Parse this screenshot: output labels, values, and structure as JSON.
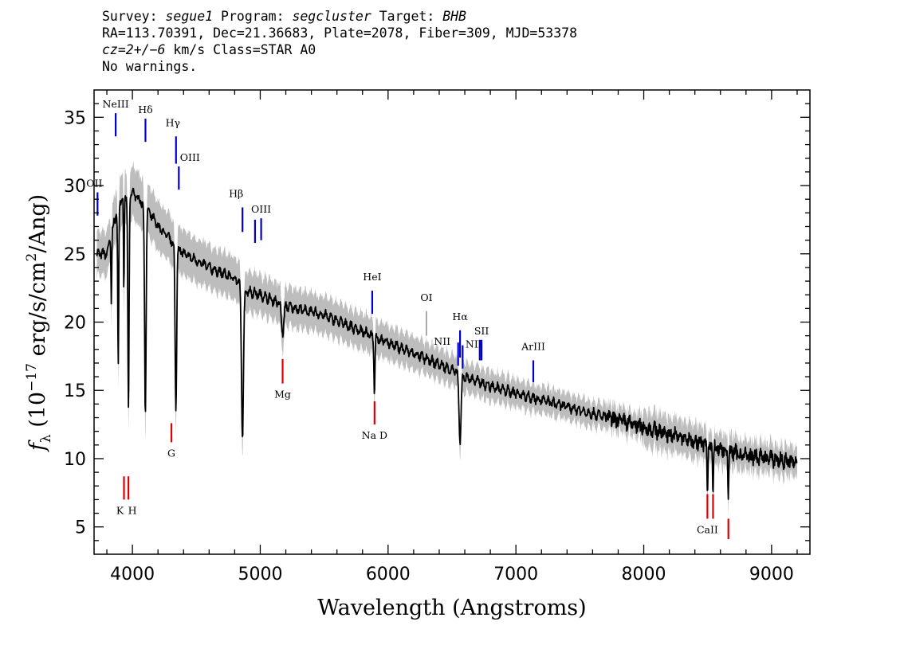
{
  "header": {
    "line1": {
      "survey_label": "Survey: ",
      "survey": "segue1",
      "program_label": " Program: ",
      "program": "segcluster",
      "target_label": " Target: ",
      "target": "BHB"
    },
    "line2": "RA=113.70391, Dec=21.36683, Plate=2078, Fiber=309, MJD=53378",
    "line3": {
      "cz_label": "cz=2+/−6",
      "rest": " km/s Class=STAR A0"
    },
    "line4": "No warnings."
  },
  "chart_data": {
    "type": "line",
    "xlabel": "Wavelength (Angstroms)",
    "ylabel": "f_λ (10^-17 erg/s/cm^2/Ang)",
    "xlim": [
      3700,
      9300
    ],
    "ylim": [
      3,
      37
    ],
    "x_ticks": [
      4000,
      5000,
      6000,
      7000,
      8000,
      9000
    ],
    "y_ticks": [
      5,
      10,
      15,
      20,
      25,
      30,
      35
    ],
    "colors": {
      "spectrum": "#000000",
      "error": "#bdbdbd",
      "emission": "#0000cc",
      "absorption": "#dd0000",
      "sky": "#555555"
    },
    "series": [
      {
        "name": "spectrum",
        "continuum_knots": [
          [
            3800,
            25
          ],
          [
            3850,
            27
          ],
          [
            3900,
            29
          ],
          [
            4000,
            29.5
          ],
          [
            4100,
            28.5
          ],
          [
            4200,
            27
          ],
          [
            4400,
            25
          ],
          [
            4600,
            24
          ],
          [
            4800,
            23.2
          ],
          [
            4850,
            22.8
          ],
          [
            4900,
            22.3
          ],
          [
            5000,
            22
          ],
          [
            5200,
            21.2
          ],
          [
            5500,
            20.5
          ],
          [
            6000,
            18.5
          ],
          [
            6300,
            17.3
          ],
          [
            6500,
            16.5
          ],
          [
            6600,
            16
          ],
          [
            6800,
            15.3
          ],
          [
            7000,
            14.8
          ],
          [
            7400,
            13.8
          ],
          [
            7800,
            12.8
          ],
          [
            8200,
            11.8
          ],
          [
            8500,
            11
          ],
          [
            8800,
            10.2
          ],
          [
            9000,
            10
          ],
          [
            9200,
            9.7
          ]
        ],
        "absorption_lines": [
          [
            3835,
            5,
            3
          ],
          [
            3889,
            12,
            4
          ],
          [
            3933,
            7,
            3
          ],
          [
            3969,
            16,
            5
          ],
          [
            4101,
            15,
            6
          ],
          [
            4340,
            12,
            6
          ],
          [
            4861,
            11,
            8
          ],
          [
            5175,
            2,
            10
          ],
          [
            5893,
            4,
            4
          ],
          [
            6563,
            5,
            8
          ],
          [
            8498,
            3,
            4
          ],
          [
            8542,
            3,
            4
          ],
          [
            8662,
            3,
            4
          ]
        ]
      },
      {
        "name": "error",
        "scale": 0.06
      }
    ],
    "emission_lines": [
      {
        "label": "OII",
        "x": 3727,
        "y0": 27.8,
        "y1": 29.5
      },
      {
        "label": "NeIII",
        "x": 3869,
        "y0": 33.6,
        "y1": 35.3
      },
      {
        "label": "Hδ",
        "x": 4102,
        "y0": 33.2,
        "y1": 34.9
      },
      {
        "label": "Hγ",
        "x": 4341,
        "y0": 31.6,
        "y1": 33.6
      },
      {
        "label": "OIII",
        "x": 4363,
        "y0": 29.7,
        "y1": 31.4
      },
      {
        "label": "Hβ",
        "x": 4861,
        "y0": 26.6,
        "y1": 28.4
      },
      {
        "label": "OIII",
        "x": 4959,
        "y0": 25.8,
        "y1": 27.5
      },
      {
        "label": "OIII",
        "x": 5007,
        "y0": 26.0,
        "y1": 27.6
      },
      {
        "label": "HeI",
        "x": 5876,
        "y0": 20.6,
        "y1": 22.3
      },
      {
        "label": "OI",
        "x": 6300,
        "y0": 19.0,
        "y1": 20.8
      },
      {
        "label": "NII",
        "x": 6548,
        "y0": 16.8,
        "y1": 18.5
      },
      {
        "label": "Hα",
        "x": 6563,
        "y0": 17.4,
        "y1": 19.4
      },
      {
        "label": "NII",
        "x": 6583,
        "y0": 16.6,
        "y1": 18.3
      },
      {
        "label": "SII",
        "x": 6717,
        "y0": 17.2,
        "y1": 18.7
      },
      {
        "label": "SII",
        "x": 6731,
        "y0": 17.2,
        "y1": 18.7
      },
      {
        "label": "ArIII",
        "x": 7136,
        "y0": 15.6,
        "y1": 17.2
      }
    ],
    "absorption_markers": [
      {
        "label": "K",
        "x": 3934,
        "y0": 7.0,
        "y1": 8.7
      },
      {
        "label": "H",
        "x": 3969,
        "y0": 7.0,
        "y1": 8.7
      },
      {
        "label": "G",
        "x": 4305,
        "y0": 11.2,
        "y1": 12.6
      },
      {
        "label": "Mg",
        "x": 5175,
        "y0": 15.5,
        "y1": 17.3
      },
      {
        "label": "Na D",
        "x": 5894,
        "y0": 12.5,
        "y1": 14.2
      },
      {
        "label": "CaII",
        "x": 8498,
        "y0": 5.6,
        "y1": 7.4
      },
      {
        "label": "",
        "x": 8542,
        "y0": 5.6,
        "y1": 7.4
      },
      {
        "label": "",
        "x": 8662,
        "y0": 4.1,
        "y1": 5.6
      }
    ]
  }
}
